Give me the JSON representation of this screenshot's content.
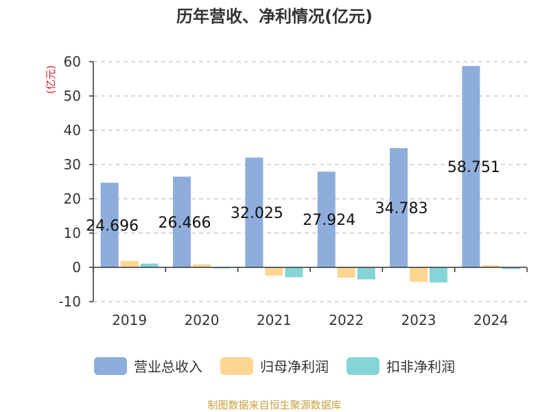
{
  "chart_data": {
    "type": "bar",
    "title": "历年营收、净利情况(亿元)",
    "unit_label": "(亿元)",
    "categories": [
      "2019",
      "2020",
      "2021",
      "2022",
      "2023",
      "2024"
    ],
    "series": [
      {
        "name": "营业总收入",
        "color": "#8eaddb",
        "values": [
          24.696,
          26.466,
          32.025,
          27.924,
          34.783,
          58.751
        ]
      },
      {
        "name": "归母净利润",
        "color": "#fdd691",
        "values": [
          1.9,
          0.9,
          -2.4,
          -3.0,
          -4.2,
          0.6
        ]
      },
      {
        "name": "扣非净利润",
        "color": "#86d4d5",
        "values": [
          1.1,
          -0.3,
          -2.9,
          -3.5,
          -4.4,
          -0.5
        ]
      }
    ],
    "data_labels": [
      "24.696",
      "26.466",
      "32.025",
      "27.924",
      "34.783",
      "58.751"
    ],
    "y_ticks": [
      "-10",
      "0",
      "10",
      "20",
      "30",
      "40",
      "50",
      "60"
    ],
    "ylim": [
      -10,
      60
    ],
    "grid": true,
    "legend_position": "bottom"
  },
  "source_note": "制图数据来自恒生聚源数据库"
}
